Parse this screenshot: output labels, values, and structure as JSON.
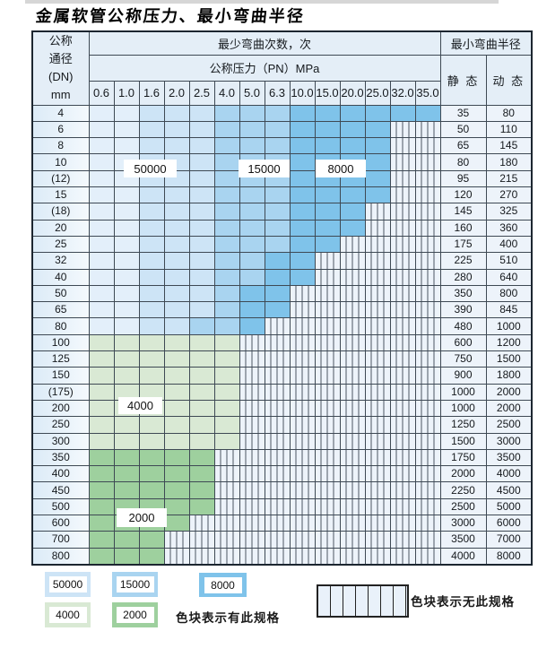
{
  "title": "金属软管公称压力、最小弯曲半径",
  "palette": {
    "blue_50000_light": "#e3effa",
    "blue_50000": "#cde4f6",
    "blue_15000": "#a9d4f0",
    "blue_8000": "#7fc3ea",
    "green_4000": "#d9e9d4",
    "green_2000": "#9ed09e",
    "no_spec_bg": "#edf3fa",
    "grid": "#3e4954"
  },
  "table": {
    "header": {
      "dn_label": "公称\n通径\n(DN)\nmm",
      "bend_cycles_label": "最少弯曲次数，次",
      "pressure_label": "公称压力（PN）MPa",
      "radius_label": "最小弯曲半径",
      "static_label": "静 态",
      "dynamic_label": "动 态",
      "pressures": [
        "0.6",
        "1.0",
        "1.6",
        "2.0",
        "2.5",
        "4.0",
        "5.0",
        "6.3",
        "10.0",
        "15.0",
        "20.0",
        "25.0",
        "32.0",
        "35.0"
      ]
    },
    "cell_code_legend": "a=50000 palest blue, b=50000 blue, c=15000 blue, d=8000 blue, g=4000 green, G=2000 green, .=no spec (striped)",
    "rows": [
      {
        "dn": "4",
        "cells": "aabbbcccdddddd",
        "static": "35",
        "dynamic": "80"
      },
      {
        "dn": "6",
        "cells": "aabbbcccdddd..",
        "static": "50",
        "dynamic": "110"
      },
      {
        "dn": "8",
        "cells": "aabbbcccdddd..",
        "static": "65",
        "dynamic": "145"
      },
      {
        "dn": "10",
        "cells": "aabbbcccdddd..",
        "static": "80",
        "dynamic": "180"
      },
      {
        "dn": "(12)",
        "cells": "aabbbcccdddd..",
        "static": "95",
        "dynamic": "215"
      },
      {
        "dn": "15",
        "cells": "aabbbcccdddd..",
        "static": "120",
        "dynamic": "270"
      },
      {
        "dn": "(18)",
        "cells": "aabbbcccddd...",
        "static": "145",
        "dynamic": "325"
      },
      {
        "dn": "20",
        "cells": "aabbbcccddd...",
        "static": "160",
        "dynamic": "360"
      },
      {
        "dn": "25",
        "cells": "aabbbcccdd....",
        "static": "175",
        "dynamic": "400"
      },
      {
        "dn": "32",
        "cells": "aabbbccdd.....",
        "static": "225",
        "dynamic": "510"
      },
      {
        "dn": "40",
        "cells": "aabbbccdd.....",
        "static": "280",
        "dynamic": "640"
      },
      {
        "dn": "50",
        "cells": "aabbbcdd......",
        "static": "350",
        "dynamic": "800"
      },
      {
        "dn": "65",
        "cells": "aabbbcdd......",
        "static": "390",
        "dynamic": "845"
      },
      {
        "dn": "80",
        "cells": "aabbccd.......",
        "static": "480",
        "dynamic": "1000"
      },
      {
        "dn": "100",
        "cells": "gggggg........",
        "static": "600",
        "dynamic": "1200"
      },
      {
        "dn": "125",
        "cells": "gggggg........",
        "static": "750",
        "dynamic": "1500"
      },
      {
        "dn": "150",
        "cells": "gggggg........",
        "static": "900",
        "dynamic": "1800"
      },
      {
        "dn": "(175)",
        "cells": "gggggg........",
        "static": "1000",
        "dynamic": "2000"
      },
      {
        "dn": "200",
        "cells": "gggggg........",
        "static": "1000",
        "dynamic": "2000"
      },
      {
        "dn": "250",
        "cells": "gggggg........",
        "static": "1250",
        "dynamic": "2500"
      },
      {
        "dn": "300",
        "cells": "gggggg........",
        "static": "1500",
        "dynamic": "3000"
      },
      {
        "dn": "350",
        "cells": "GGGGG.........",
        "static": "1750",
        "dynamic": "3500"
      },
      {
        "dn": "400",
        "cells": "GGGGG.........",
        "static": "2000",
        "dynamic": "4000"
      },
      {
        "dn": "450",
        "cells": "GGGGG.........",
        "static": "2250",
        "dynamic": "4500"
      },
      {
        "dn": "500",
        "cells": "GGGGG.........",
        "static": "2500",
        "dynamic": "5000"
      },
      {
        "dn": "600",
        "cells": "GGGG..........",
        "static": "3000",
        "dynamic": "6000"
      },
      {
        "dn": "700",
        "cells": "GGG...........",
        "static": "3500",
        "dynamic": "7000"
      },
      {
        "dn": "800",
        "cells": "GGG...........",
        "static": "4000",
        "dynamic": "8000"
      }
    ],
    "overlays": [
      {
        "text": "50000"
      },
      {
        "text": "15000"
      },
      {
        "text": "8000"
      },
      {
        "text": "4000"
      },
      {
        "text": "2000"
      }
    ]
  },
  "legend": {
    "has_spec": [
      {
        "label": "50000",
        "color": "#cde4f6"
      },
      {
        "label": "15000",
        "color": "#a9d4f0"
      },
      {
        "label": "8000",
        "color": "#7fc3ea"
      },
      {
        "label": "4000",
        "color": "#d9e9d4"
      },
      {
        "label": "2000",
        "color": "#9ed09e"
      }
    ],
    "has_spec_text": "色块表示有此规格",
    "no_spec_text": "色块表示无此规格"
  }
}
